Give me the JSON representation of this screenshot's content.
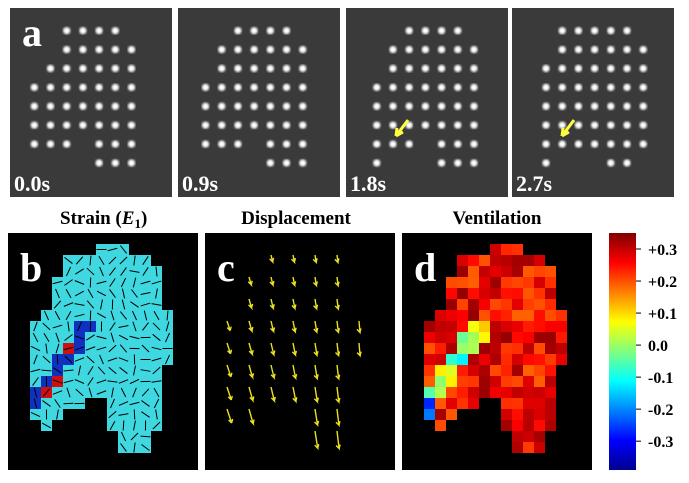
{
  "top_row": {
    "panel_label": "a",
    "frames": [
      "0.0s",
      "0.9s",
      "1.8s",
      "2.7s"
    ]
  },
  "column_titles": {
    "strain": {
      "text": "Strain (",
      "symbol": "E",
      "subscript": "1",
      "close": ")"
    },
    "displacement": "Displacement",
    "ventilation": "Ventilation"
  },
  "bottom_panels": [
    "b",
    "c",
    "d"
  ],
  "colorbar": {
    "lim": [
      -0.39,
      0.35
    ],
    "ticks": [
      {
        "value": 0.3,
        "label": "+0.3"
      },
      {
        "value": 0.2,
        "label": "+0.2"
      },
      {
        "value": 0.1,
        "label": "+0.1"
      },
      {
        "value": 0,
        "label": "0.0"
      },
      -0.1,
      -0.2,
      -0.3
    ]
  }
}
